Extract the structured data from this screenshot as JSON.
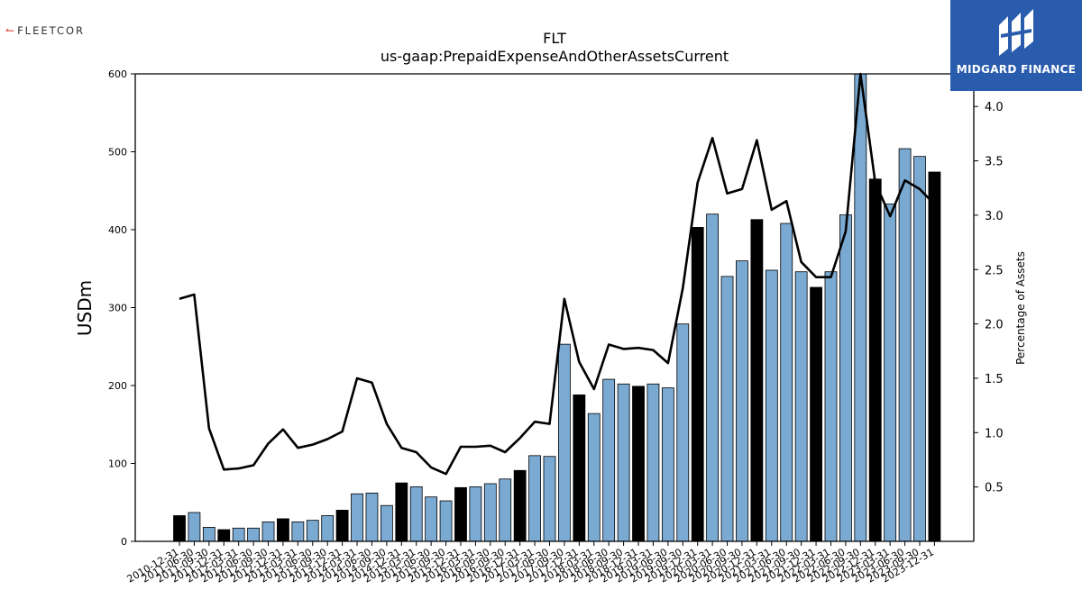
{
  "logos": {
    "left_text": "FLEETCOR",
    "right_text": "MIDGARD FINANCE"
  },
  "colors": {
    "bar_light": "#7aa9d2",
    "bar_dark": "#000000",
    "line": "#000000",
    "brand_blue": "#2a5cae"
  },
  "chart_data": {
    "type": "bar",
    "title": "FLT",
    "subtitle": "us-gaap:PrepaidExpenseAndOtherAssetsCurrent",
    "ylabel": "USDm",
    "y2label": "Percentage of Assets",
    "ylim": [
      0,
      600
    ],
    "yticks": [
      0,
      100,
      200,
      300,
      400,
      500,
      600
    ],
    "y2lim": [
      0,
      4.3
    ],
    "y2ticks": [
      "0.5",
      "1.0",
      "1.5",
      "2.0",
      "2.5",
      "3.0",
      "3.5",
      "4.0"
    ],
    "categories": [
      "2010-12-31",
      "2011-06-30",
      "2011-09-30",
      "2011-12-31",
      "2012-03-31",
      "2012-06-30",
      "2012-09-30",
      "2012-12-31",
      "2013-03-31",
      "2013-06-30",
      "2013-09-30",
      "2013-12-31",
      "2014-03-31",
      "2014-06-30",
      "2014-09-30",
      "2014-12-31",
      "2015-03-31",
      "2015-06-30",
      "2015-09-30",
      "2015-12-31",
      "2016-03-31",
      "2016-06-30",
      "2016-09-30",
      "2016-12-31",
      "2017-03-31",
      "2017-06-30",
      "2017-09-30",
      "2017-12-31",
      "2018-03-31",
      "2018-06-30",
      "2018-09-30",
      "2018-12-31",
      "2019-03-31",
      "2019-06-30",
      "2019-09-30",
      "2019-12-31",
      "2020-03-31",
      "2020-06-30",
      "2020-09-30",
      "2020-12-31",
      "2021-03-31",
      "2021-06-30",
      "2021-09-30",
      "2021-12-31",
      "2022-03-31",
      "2022-06-30",
      "2022-09-30",
      "2022-12-31",
      "2023-03-31",
      "2023-06-30",
      "2023-09-30",
      "2023-12-31"
    ],
    "series": [
      {
        "kind": "bar",
        "values": [
          33,
          37,
          18,
          15,
          17,
          17,
          25,
          29,
          25,
          27,
          33,
          40,
          61,
          62,
          46,
          75,
          70,
          57,
          52,
          69,
          70,
          74,
          80,
          91,
          110,
          109,
          253,
          188,
          164,
          208,
          202,
          199,
          202,
          197,
          279,
          403,
          420,
          340,
          360,
          413,
          348,
          408,
          346,
          326,
          346,
          419,
          604,
          465,
          433,
          504,
          494,
          474
        ],
        "dark": [
          true,
          false,
          false,
          true,
          false,
          false,
          false,
          true,
          false,
          false,
          false,
          true,
          false,
          false,
          false,
          true,
          false,
          false,
          false,
          true,
          false,
          false,
          false,
          true,
          false,
          false,
          false,
          true,
          false,
          false,
          false,
          true,
          false,
          false,
          false,
          true,
          false,
          false,
          false,
          true,
          false,
          false,
          false,
          true,
          false,
          false,
          false,
          true,
          false,
          false,
          false,
          true
        ]
      },
      {
        "kind": "line",
        "axis": "right",
        "values": [
          2.23,
          2.27,
          1.04,
          0.66,
          0.67,
          0.7,
          0.9,
          1.03,
          0.86,
          0.89,
          0.94,
          1.01,
          1.5,
          1.46,
          1.08,
          0.86,
          0.82,
          0.68,
          0.62,
          0.87,
          0.87,
          0.88,
          0.82,
          0.95,
          1.1,
          1.08,
          2.23,
          1.65,
          1.4,
          1.81,
          1.77,
          1.78,
          1.76,
          1.64,
          2.33,
          3.3,
          3.71,
          3.2,
          3.24,
          3.69,
          3.05,
          3.13,
          2.57,
          2.43,
          2.43,
          2.85,
          4.3,
          3.3,
          2.99,
          3.32,
          3.24,
          3.1
        ]
      }
    ]
  }
}
